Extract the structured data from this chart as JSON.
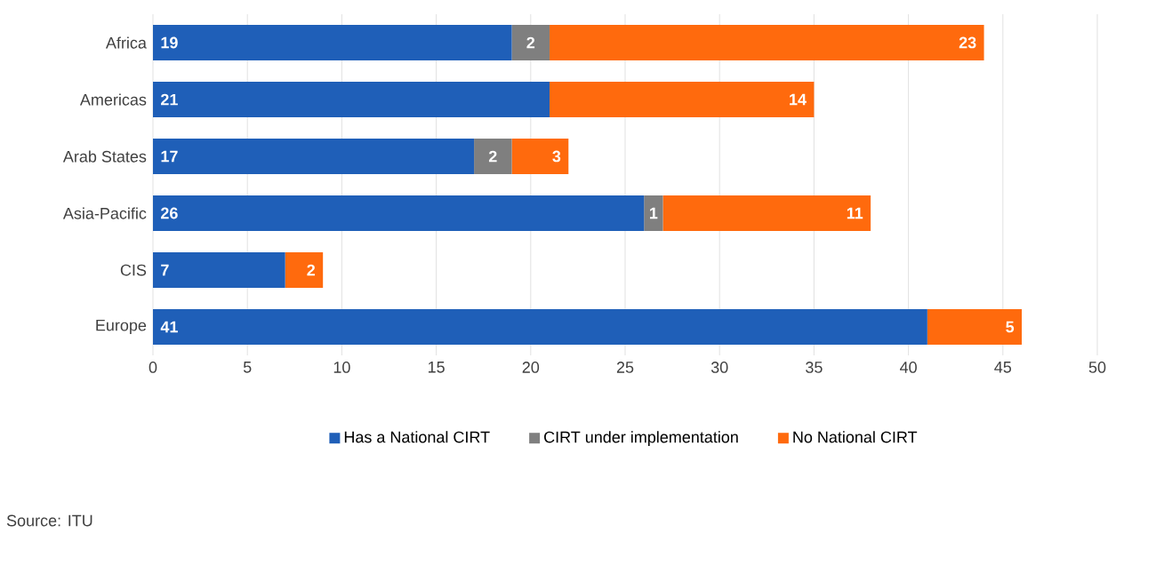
{
  "chart_data": {
    "type": "bar",
    "orientation": "horizontal",
    "stacked": true,
    "categories": [
      "Africa",
      "Americas",
      "Arab States",
      "Asia-Pacific",
      "CIS",
      "Europe"
    ],
    "series": [
      {
        "name": "Has a National CIRT",
        "color": "#1f5fb8",
        "values": [
          19,
          21,
          17,
          26,
          7,
          41
        ],
        "value_labels": [
          "19",
          "21",
          "17",
          "26",
          "7",
          "41"
        ]
      },
      {
        "name": "CIRT under implementation",
        "color": "#7f7f7f",
        "values": [
          2,
          0,
          2,
          1,
          0,
          0
        ],
        "value_labels": [
          "2",
          null,
          "2",
          "1",
          null,
          null
        ]
      },
      {
        "name": "No National CIRT",
        "color": "#ff6a0d",
        "values": [
          23,
          14,
          3,
          11,
          2,
          5
        ],
        "value_labels": [
          "23",
          "14",
          "3",
          "11",
          "2",
          "5"
        ]
      }
    ],
    "xlim": [
      0,
      50
    ],
    "xticks": [
      0,
      5,
      10,
      15,
      20,
      25,
      30,
      35,
      40,
      45,
      50
    ],
    "grid": "x",
    "legend": "bottom",
    "annotations": [
      "Source: ITU"
    ]
  }
}
